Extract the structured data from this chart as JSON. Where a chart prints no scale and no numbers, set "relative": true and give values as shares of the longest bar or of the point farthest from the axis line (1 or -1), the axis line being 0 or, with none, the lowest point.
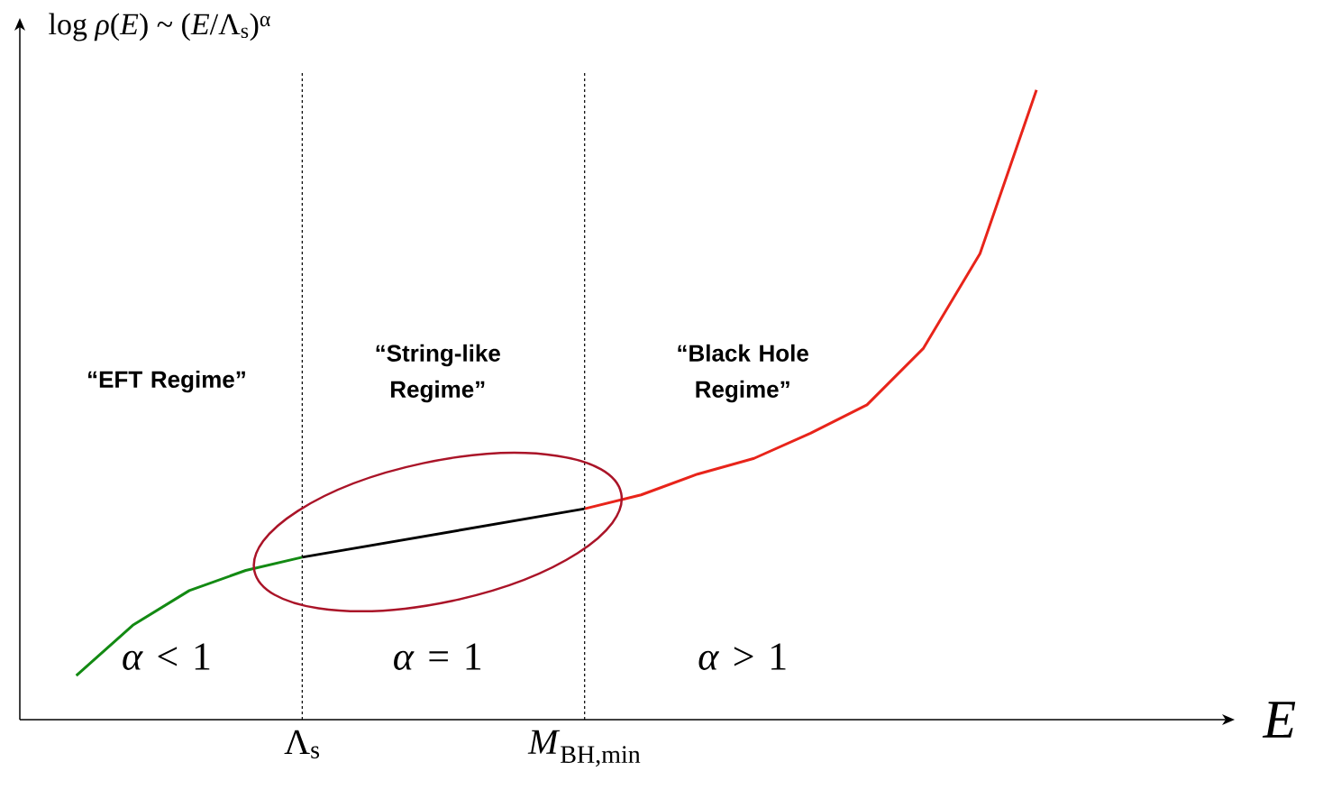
{
  "chart_data": {
    "type": "line",
    "relative": true,
    "ylabel": "log *ρ*(*E*) ~ (*E*/Λ$_{s}$)$^{α}$",
    "xlabel": "E",
    "categories": [
      null,
      null,
      null,
      null,
      null,
      "Λ$_{s}$",
      null,
      null,
      null,
      null,
      "*M*$_{BH,min}$",
      null,
      null,
      null,
      null,
      null,
      null,
      null,
      null,
      null,
      null,
      null
    ],
    "series": [
      {
        "color": "#138a13",
        "values": [
          null,
          0.07,
          0.15,
          0.205,
          0.237,
          0.258,
          null,
          null,
          null,
          null,
          null,
          null,
          null,
          null,
          null,
          null,
          null,
          null,
          null,
          null,
          null,
          null
        ]
      },
      {
        "color": "#000000",
        "values": [
          null,
          null,
          null,
          null,
          null,
          0.258,
          null,
          null,
          null,
          null,
          0.335,
          null,
          null,
          null,
          null,
          null,
          null,
          null,
          null,
          null,
          null,
          null
        ]
      },
      {
        "color": "#e8241a",
        "values": [
          null,
          null,
          null,
          null,
          null,
          null,
          null,
          null,
          null,
          null,
          0.335,
          0.357,
          0.39,
          0.415,
          0.455,
          0.5,
          0.59,
          0.74,
          1.0,
          null,
          null,
          null
        ]
      }
    ],
    "ref_lines": [
      {
        "axis": "x",
        "value": "Λ$_{s}$",
        "line_style": "dashed",
        "color": "#000000"
      },
      {
        "axis": "x",
        "value": "*M*$_{BH,min}$",
        "line_style": "dashed",
        "color": "#000000"
      }
    ],
    "annotations": [
      "“EFT Regime”",
      "“String-like Regime”",
      "“Black Hole Regime”",
      "*α* < 1",
      "*α* = 1",
      "*α* > 1"
    ],
    "marker": "none",
    "line_style": "solid"
  }
}
